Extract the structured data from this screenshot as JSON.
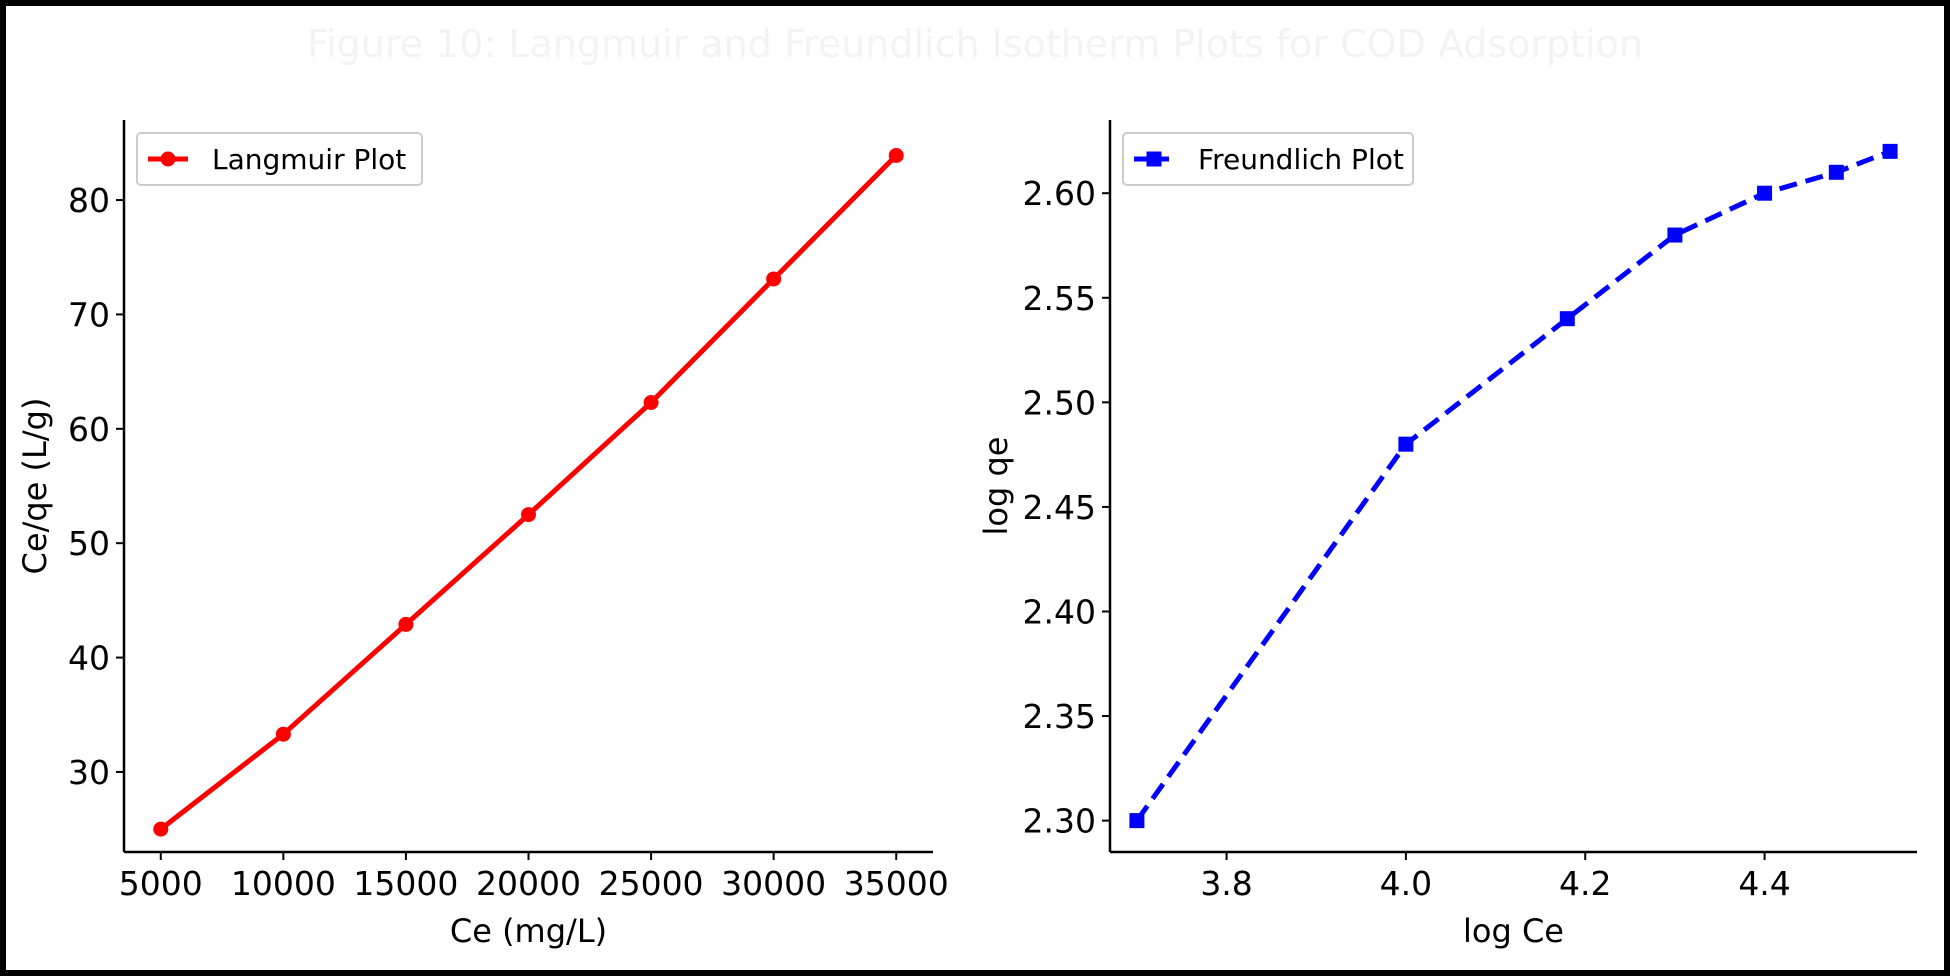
{
  "figure": {
    "title": "Figure 10: Langmuir and Freundlich Isotherm Plots for COD Adsorption"
  },
  "chart_data": [
    {
      "type": "line",
      "xlabel": "Ce (mg/L)",
      "ylabel": "Ce/qe (L/g)",
      "xlim": [
        3500,
        36500
      ],
      "ylim": [
        23,
        87
      ],
      "xticks": [
        5000,
        10000,
        15000,
        20000,
        25000,
        30000,
        35000
      ],
      "xtick_labels": [
        "5000",
        "10000",
        "15000",
        "20000",
        "25000",
        "30000",
        "35000"
      ],
      "yticks": [
        30,
        40,
        50,
        60,
        70,
        80
      ],
      "ytick_labels": [
        "30",
        "40",
        "50",
        "60",
        "70",
        "80"
      ],
      "legend_position": "top-left",
      "grid": false,
      "series": [
        {
          "name": "Langmuir Plot",
          "color": "#ff0000",
          "marker": "circle",
          "line_style": "solid",
          "x": [
            5000,
            10000,
            15000,
            20000,
            25000,
            30000,
            35000
          ],
          "y": [
            25.0,
            33.3,
            42.9,
            52.5,
            62.3,
            73.1,
            83.9
          ]
        }
      ]
    },
    {
      "type": "line",
      "xlabel": "log Ce",
      "ylabel": "log qe",
      "xlim": [
        3.67,
        4.57
      ],
      "ylim": [
        2.285,
        2.635
      ],
      "xticks": [
        3.8,
        4.0,
        4.2,
        4.4
      ],
      "xtick_labels": [
        "3.8",
        "4.0",
        "4.2",
        "4.4"
      ],
      "yticks": [
        2.3,
        2.35,
        2.4,
        2.45,
        2.5,
        2.55,
        2.6
      ],
      "ytick_labels": [
        "2.30",
        "2.35",
        "2.40",
        "2.45",
        "2.50",
        "2.55",
        "2.60"
      ],
      "legend_position": "top-left",
      "grid": false,
      "series": [
        {
          "name": "Freundlich Plot",
          "color": "#0000ff",
          "marker": "square",
          "line_style": "dashed",
          "x": [
            3.7,
            4.0,
            4.18,
            4.3,
            4.4,
            4.48,
            4.54
          ],
          "y": [
            2.3,
            2.48,
            2.54,
            2.58,
            2.6,
            2.61,
            2.62
          ]
        }
      ]
    }
  ]
}
